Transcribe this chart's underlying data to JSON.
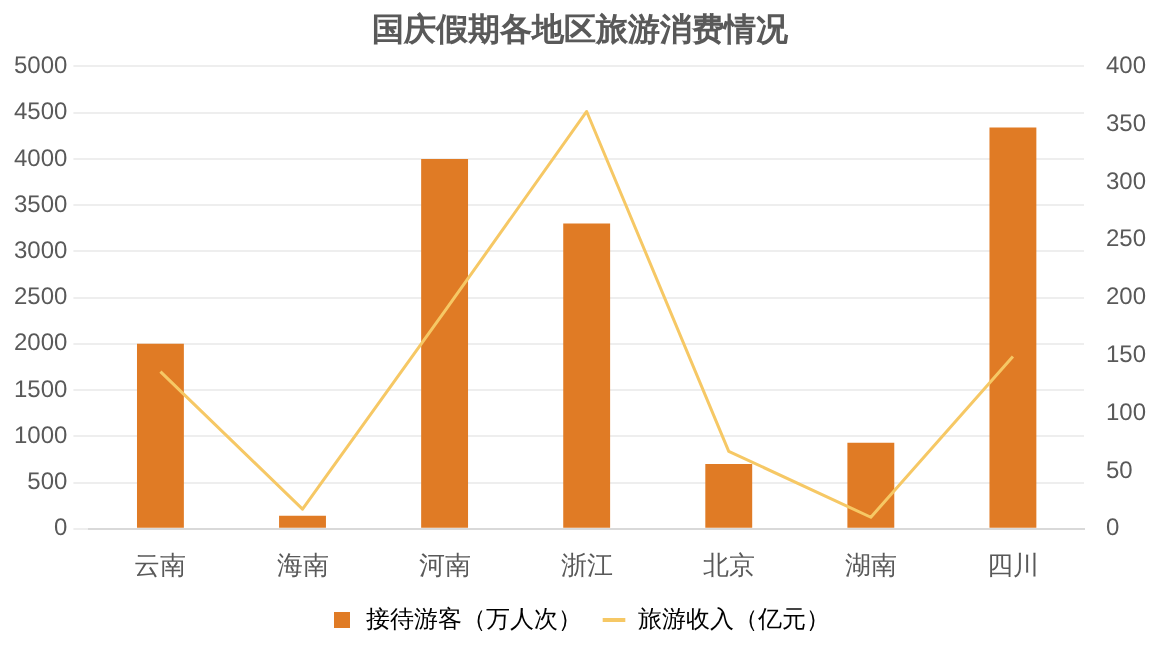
{
  "chart_data": {
    "type": "bar",
    "title": "国庆假期各地区旅游消费情况",
    "categories": [
      "云南",
      "海南",
      "河南",
      "浙江",
      "北京",
      "湖南",
      "四川"
    ],
    "series": [
      {
        "name": "接待游客（万人次）",
        "color": "#e07b25",
        "values": [
          2000,
          140,
          4000,
          3300,
          700,
          930,
          4340
        ]
      },
      {
        "name": "旅游收入（亿元）",
        "type": "line",
        "axis": "y2",
        "color": "#f6c865",
        "values": [
          136,
          17,
          188,
          361,
          67,
          10,
          149
        ]
      }
    ],
    "ylim": [
      0,
      5000
    ],
    "yticks": [
      0,
      500,
      1000,
      1500,
      2000,
      2500,
      3000,
      3500,
      4000,
      4500,
      5000
    ],
    "y2lim": [
      0,
      400
    ],
    "y2ticks": [
      0,
      50,
      100,
      150,
      200,
      250,
      300,
      350,
      400
    ],
    "grid": "y",
    "legend": "bottom",
    "marker": "none"
  }
}
